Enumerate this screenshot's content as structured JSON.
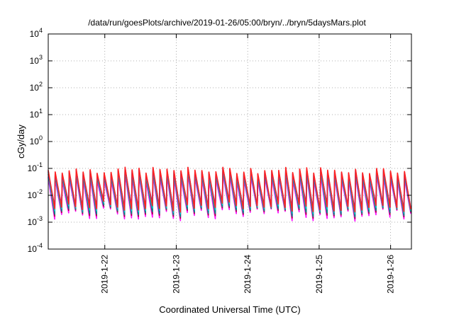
{
  "chart_data": {
    "type": "line",
    "title": "/data/run/goesPlots/archive/2019-01-26/05:00/bryn/../bryn/5daysMars.plot",
    "xlabel": "Coordinated Universal Time (UTC)",
    "ylabel": "cGy/day",
    "y_scale": "log",
    "ylim": [
      0.0001,
      10000
    ],
    "y_ticks": [
      {
        "base": "10",
        "exp": "4",
        "value": 10000
      },
      {
        "base": "10",
        "exp": "3",
        "value": 1000
      },
      {
        "base": "10",
        "exp": "2",
        "value": 100
      },
      {
        "base": "10",
        "exp": "1",
        "value": 10
      },
      {
        "base": "10",
        "exp": "0",
        "value": 1
      },
      {
        "base": "10",
        "exp": "-1",
        "value": 0.1
      },
      {
        "base": "10",
        "exp": "-2",
        "value": 0.01
      },
      {
        "base": "10",
        "exp": "-3",
        "value": 0.001
      },
      {
        "base": "10",
        "exp": "-4",
        "value": 0.0001
      }
    ],
    "xlim": [
      "2019-01-21 05:00",
      "2019-01-26 07:00"
    ],
    "x_ticks": [
      {
        "label": "2019-1-22",
        "value": "2019-01-22 00:00"
      },
      {
        "label": "2019-1-23",
        "value": "2019-01-23 00:00"
      },
      {
        "label": "2019-1-24",
        "value": "2019-01-24 00:00"
      },
      {
        "label": "2019-1-25",
        "value": "2019-01-25 00:00"
      },
      {
        "label": "2019-1-26",
        "value": "2019-01-26 00:00"
      }
    ],
    "grid": true,
    "legend": "none",
    "sawtooth": {
      "teeth": 52,
      "peak_range": [
        0.055,
        0.1
      ],
      "min_range_upper_series": [
        0.004,
        0.01
      ],
      "min_range_lower_series": [
        0.0009,
        0.003
      ]
    },
    "series": [
      {
        "color": "#ff00ff",
        "peak_scale": 0.55,
        "trough_scale": 0.12
      },
      {
        "color": "#ff1aff",
        "peak_scale": 0.6,
        "trough_scale": 0.2
      },
      {
        "color": "#aa0044",
        "peak_scale": 1.0,
        "trough_scale": 0.25
      },
      {
        "color": "#008b8b",
        "peak_scale": 0.75,
        "trough_scale": 0.35
      },
      {
        "color": "#00cccc",
        "peak_scale": 0.85,
        "trough_scale": 0.5
      },
      {
        "color": "#2244ff",
        "peak_scale": 0.9,
        "trough_scale": 0.7
      },
      {
        "color": "#ff2222",
        "peak_scale": 1.05,
        "trough_scale": 0.6
      }
    ]
  }
}
